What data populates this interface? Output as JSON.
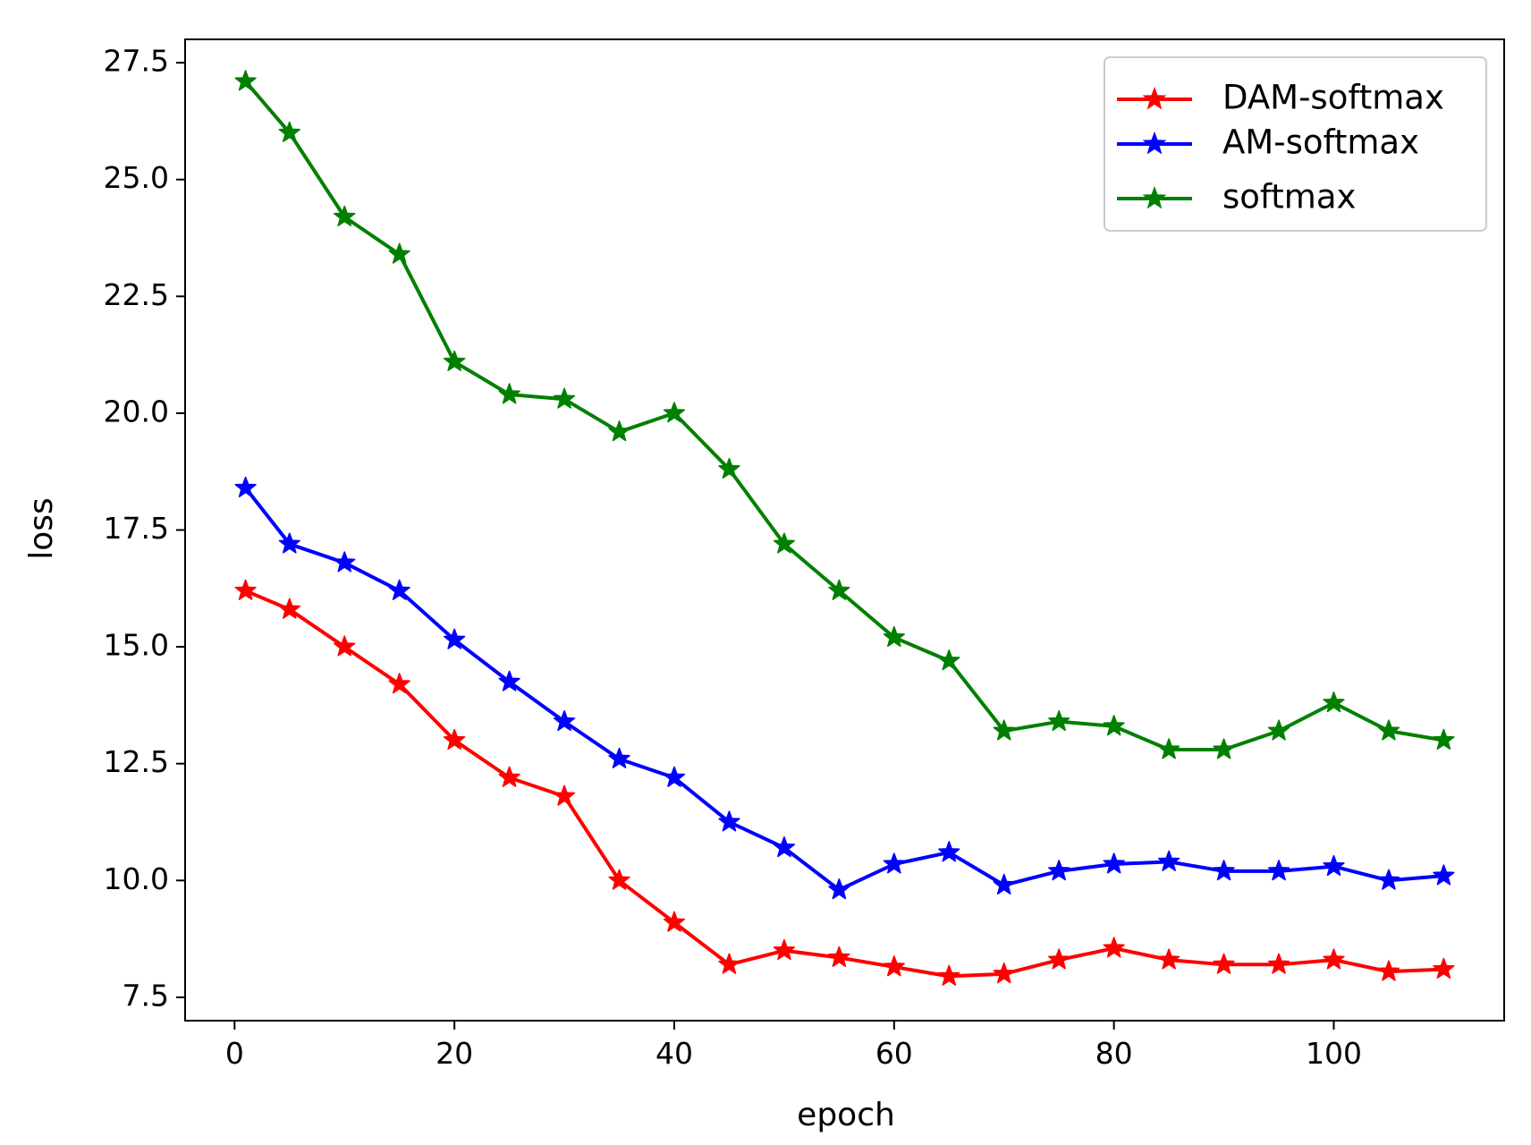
{
  "chart_data": {
    "type": "line",
    "title": "",
    "xlabel": "epoch",
    "ylabel": "loss",
    "xlim": [
      -4.5,
      115.5
    ],
    "ylim": [
      7.0,
      28.0
    ],
    "xticks": [
      0,
      20,
      40,
      60,
      80,
      100
    ],
    "xtick_labels": [
      "0",
      "20",
      "40",
      "60",
      "80",
      "100"
    ],
    "yticks": [
      7.5,
      10.0,
      12.5,
      15.0,
      17.5,
      20.0,
      22.5,
      25.0,
      27.5
    ],
    "ytick_labels": [
      "7.5",
      "10.0",
      "12.5",
      "15.0",
      "17.5",
      "20.0",
      "22.5",
      "25.0",
      "27.5"
    ],
    "grid": false,
    "legend_position": "top-right",
    "marker": "star",
    "x": [
      1,
      5,
      10,
      15,
      20,
      25,
      30,
      35,
      40,
      45,
      50,
      55,
      60,
      65,
      70,
      75,
      80,
      85,
      90,
      95,
      100,
      105,
      110
    ],
    "series": [
      {
        "name": "DAM-softmax",
        "color": "#ff0000",
        "values": [
          16.2,
          15.8,
          15.0,
          14.2,
          13.0,
          12.2,
          11.8,
          10.0,
          9.1,
          8.2,
          8.5,
          8.35,
          8.15,
          7.95,
          8.0,
          8.3,
          8.55,
          8.3,
          8.2,
          8.2,
          8.3,
          8.05,
          8.1
        ]
      },
      {
        "name": "AM-softmax",
        "color": "#0000ff",
        "values": [
          18.4,
          17.2,
          16.8,
          16.2,
          15.15,
          14.25,
          13.4,
          12.6,
          12.2,
          11.25,
          10.7,
          9.8,
          10.35,
          10.6,
          9.9,
          10.2,
          10.35,
          10.4,
          10.2,
          10.2,
          10.3,
          10.0,
          10.1
        ]
      },
      {
        "name": "softmax",
        "color": "#008000",
        "values": [
          27.1,
          26.0,
          24.2,
          23.4,
          21.1,
          20.4,
          20.3,
          19.6,
          20.0,
          18.8,
          17.2,
          16.2,
          15.2,
          14.7,
          13.2,
          13.4,
          13.3,
          12.8,
          12.8,
          13.2,
          13.8,
          13.2,
          13.0
        ]
      }
    ]
  }
}
